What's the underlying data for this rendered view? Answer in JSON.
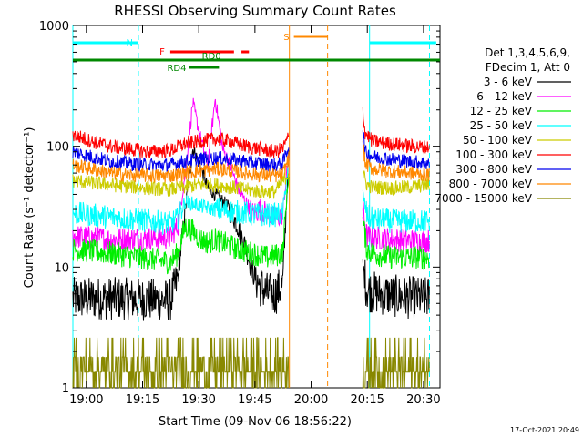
{
  "chart_data": {
    "type": "line",
    "title": "RHESSI Observing Summary Count Rates",
    "xlabel": "Start Time (09-Nov-06 18:56:22)",
    "ylabel": "Count Rate (s⁻¹ detector⁻¹)",
    "x_units": "minutes after 18:56:22",
    "xlim": [
      0,
      98
    ],
    "ylim": [
      1,
      1000
    ],
    "yscale": "log",
    "x_ticks": [
      {
        "label": "19:00",
        "t": 3.6
      },
      {
        "label": "19:15",
        "t": 18.6
      },
      {
        "label": "19:30",
        "t": 33.6
      },
      {
        "label": "19:45",
        "t": 48.6
      },
      {
        "label": "20:00",
        "t": 63.6
      },
      {
        "label": "20:15",
        "t": 78.6
      },
      {
        "label": "20:30",
        "t": 93.6
      }
    ],
    "y_ticks": [
      {
        "label": "1",
        "v": 1
      },
      {
        "label": "10",
        "v": 10
      },
      {
        "label": "100",
        "v": 100
      },
      {
        "label": "1000",
        "v": 1000
      }
    ],
    "legend_header": [
      "Det 1,3,4,5,6,9,",
      "FDecim 1, Att 0"
    ],
    "legend_position": "right",
    "gap": [
      58.2,
      77.4
    ],
    "series": [
      {
        "name": "3 - 6 keV",
        "color": "#000000",
        "before": [
          [
            0,
            5.5
          ],
          [
            10,
            5.5
          ],
          [
            26,
            5.3
          ],
          [
            28,
            8
          ],
          [
            30,
            30
          ],
          [
            32,
            95
          ],
          [
            34,
            70
          ],
          [
            36,
            45
          ],
          [
            38,
            40
          ],
          [
            40,
            35
          ],
          [
            42,
            30
          ],
          [
            44,
            22
          ],
          [
            46,
            15
          ],
          [
            48,
            9
          ],
          [
            50,
            7
          ],
          [
            52,
            6
          ],
          [
            54,
            6
          ],
          [
            56,
            7
          ],
          [
            57.6,
            85
          ]
        ],
        "after": [
          [
            77.4,
            10
          ],
          [
            78.5,
            6.5
          ],
          [
            80,
            6.2
          ],
          [
            85,
            5.8
          ],
          [
            90,
            5.6
          ],
          [
            95.2,
            5.5
          ]
        ]
      },
      {
        "name": "6 - 12 keV",
        "color": "#ff00ff",
        "before": [
          [
            0,
            18
          ],
          [
            10,
            17
          ],
          [
            26,
            17.5
          ],
          [
            28,
            22
          ],
          [
            30,
            60
          ],
          [
            32,
            230
          ],
          [
            34,
            120
          ],
          [
            36,
            70
          ],
          [
            38,
            250
          ],
          [
            40,
            95
          ],
          [
            42,
            70
          ],
          [
            44,
            45
          ],
          [
            46,
            35
          ],
          [
            48,
            28
          ],
          [
            50,
            30
          ],
          [
            54,
            25
          ],
          [
            56,
            28
          ],
          [
            57.6,
            85
          ]
        ],
        "after": [
          [
            77.4,
            30
          ],
          [
            78.5,
            18
          ],
          [
            80,
            17.5
          ],
          [
            85,
            17
          ],
          [
            90,
            16.5
          ],
          [
            95.2,
            16.5
          ]
        ]
      },
      {
        "name": "12 - 25 keV",
        "color": "#00ee00",
        "before": [
          [
            0,
            14
          ],
          [
            10,
            13
          ],
          [
            26,
            11
          ],
          [
            28,
            13
          ],
          [
            30,
            22
          ],
          [
            32,
            20
          ],
          [
            34,
            17
          ],
          [
            36,
            16
          ],
          [
            38,
            17
          ],
          [
            40,
            16
          ],
          [
            42,
            15
          ],
          [
            44,
            14
          ],
          [
            48,
            13
          ],
          [
            52,
            12
          ],
          [
            56,
            13
          ],
          [
            57.6,
            60
          ]
        ],
        "after": [
          [
            77.4,
            24
          ],
          [
            78.5,
            14
          ],
          [
            80,
            13
          ],
          [
            85,
            12
          ],
          [
            90,
            12
          ],
          [
            95.2,
            12
          ]
        ]
      },
      {
        "name": "25 - 50 keV",
        "color": "#00ffff",
        "before": [
          [
            0,
            28
          ],
          [
            10,
            26
          ],
          [
            26,
            23
          ],
          [
            28,
            25
          ],
          [
            30,
            35
          ],
          [
            34,
            32
          ],
          [
            36,
            31
          ],
          [
            38,
            30
          ],
          [
            42,
            29
          ],
          [
            46,
            28
          ],
          [
            50,
            27
          ],
          [
            54,
            27
          ],
          [
            56,
            28
          ],
          [
            57.6,
            75
          ]
        ],
        "after": [
          [
            77.4,
            40
          ],
          [
            78.5,
            27
          ],
          [
            80,
            25
          ],
          [
            85,
            24
          ],
          [
            90,
            24
          ],
          [
            95.2,
            24
          ]
        ]
      },
      {
        "name": "50 - 100 keV",
        "color": "#cccc00",
        "before": [
          [
            0,
            52
          ],
          [
            10,
            48
          ],
          [
            20,
            45
          ],
          [
            26,
            44
          ],
          [
            30,
            46
          ],
          [
            34,
            48
          ],
          [
            38,
            48
          ],
          [
            42,
            46
          ],
          [
            46,
            44
          ],
          [
            50,
            42
          ],
          [
            54,
            42
          ],
          [
            57.6,
            60
          ]
        ],
        "after": [
          [
            77.4,
            60
          ],
          [
            78.5,
            48
          ],
          [
            80,
            46
          ],
          [
            85,
            45
          ],
          [
            90,
            46
          ],
          [
            95.2,
            48
          ]
        ]
      },
      {
        "name": "100 - 300 keV",
        "color": "#ff0000",
        "before": [
          [
            0,
            125
          ],
          [
            5,
            110
          ],
          [
            10,
            100
          ],
          [
            15,
            95
          ],
          [
            20,
            90
          ],
          [
            26,
            92
          ],
          [
            30,
            105
          ],
          [
            34,
            110
          ],
          [
            38,
            115
          ],
          [
            42,
            110
          ],
          [
            46,
            100
          ],
          [
            50,
            95
          ],
          [
            54,
            90
          ],
          [
            56,
            95
          ],
          [
            57.6,
            120
          ]
        ],
        "after": [
          [
            77.4,
            200
          ],
          [
            78,
            130
          ],
          [
            80,
            110
          ],
          [
            85,
            105
          ],
          [
            90,
            100
          ],
          [
            95.2,
            98
          ]
        ]
      },
      {
        "name": "300 - 800 keV",
        "color": "#0000ee",
        "before": [
          [
            0,
            90
          ],
          [
            5,
            82
          ],
          [
            10,
            75
          ],
          [
            15,
            72
          ],
          [
            20,
            70
          ],
          [
            26,
            70
          ],
          [
            30,
            75
          ],
          [
            34,
            78
          ],
          [
            38,
            80
          ],
          [
            42,
            78
          ],
          [
            46,
            75
          ],
          [
            50,
            72
          ],
          [
            54,
            70
          ],
          [
            56,
            72
          ],
          [
            57.6,
            100
          ]
        ],
        "after": [
          [
            77.4,
            140
          ],
          [
            78,
            90
          ],
          [
            80,
            82
          ],
          [
            85,
            78
          ],
          [
            90,
            75
          ],
          [
            95.2,
            72
          ]
        ]
      },
      {
        "name": "800 - 7000 keV",
        "color": "#ff8800",
        "before": [
          [
            0,
            70
          ],
          [
            5,
            65
          ],
          [
            10,
            60
          ],
          [
            15,
            58
          ],
          [
            20,
            57
          ],
          [
            26,
            57
          ],
          [
            30,
            60
          ],
          [
            34,
            63
          ],
          [
            38,
            65
          ],
          [
            42,
            63
          ],
          [
            46,
            60
          ],
          [
            50,
            58
          ],
          [
            54,
            57
          ],
          [
            56,
            58
          ],
          [
            57.6,
            80
          ]
        ],
        "after": [
          [
            77.4,
            110
          ],
          [
            78,
            72
          ],
          [
            80,
            65
          ],
          [
            85,
            62
          ],
          [
            90,
            60
          ],
          [
            95.2,
            58
          ]
        ]
      },
      {
        "name": "7000 - 15000 keV",
        "color": "#888800",
        "before": [
          [
            0,
            1.3
          ],
          [
            57.6,
            1.3
          ]
        ],
        "after": [
          [
            77.4,
            1.3
          ],
          [
            95.2,
            1.3
          ]
        ]
      }
    ],
    "flag_bars": [
      {
        "label": "N",
        "color": "#00ffff",
        "segments": [
          [
            0,
            17.5
          ],
          [
            79.2,
            97
          ]
        ]
      },
      {
        "label": "S",
        "color": "#ff8800",
        "segments": [
          [
            59,
            68
          ]
        ]
      },
      {
        "label": "F",
        "color": "#ff0000",
        "segments": [
          [
            26,
            43
          ],
          [
            45,
            47
          ]
        ]
      },
      {
        "label": "RD0",
        "color": "#008800",
        "segments": [
          [
            0,
            98
          ]
        ]
      },
      {
        "label": "RD4",
        "color": "#008800",
        "segments": [
          [
            31,
            39
          ]
        ]
      }
    ],
    "vlines": [
      {
        "t": 0,
        "color": "#00ffff",
        "dash": false
      },
      {
        "t": 17.5,
        "color": "#00ffff",
        "dash": true
      },
      {
        "t": 57.8,
        "color": "#ff8800",
        "dash": false
      },
      {
        "t": 68,
        "color": "#ff8800",
        "dash": true
      },
      {
        "t": 79.2,
        "color": "#00ffff",
        "dash": false
      },
      {
        "t": 95.2,
        "color": "#00ffff",
        "dash": true
      }
    ]
  },
  "footer_timestamp": "17-Oct-2021 20:49"
}
